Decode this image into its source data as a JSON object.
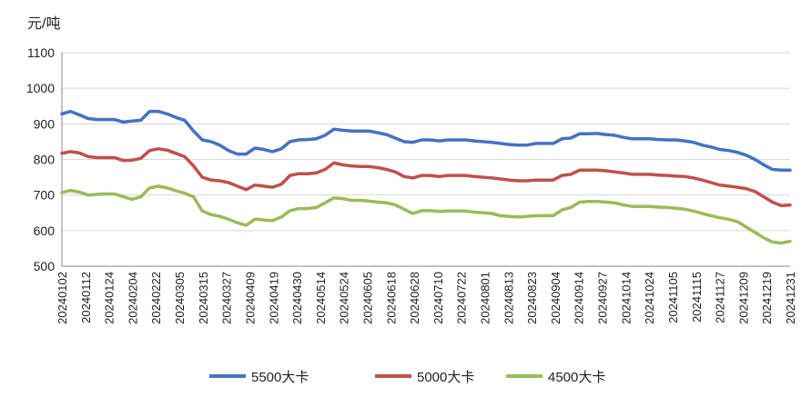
{
  "chart_data": {
    "type": "line",
    "unit_label": "元/吨",
    "ylim": [
      500,
      1100
    ],
    "y_ticks": [
      500,
      600,
      700,
      800,
      900,
      1000,
      1100
    ],
    "grid": true,
    "legend_position": "bottom",
    "x_ticks": [
      "20240102",
      "20240112",
      "20240124",
      "20240204",
      "20240222",
      "20240305",
      "20240315",
      "20240327",
      "20240409",
      "20240419",
      "20240430",
      "20240514",
      "20240524",
      "20240605",
      "20240618",
      "20240628",
      "20240710",
      "20240722",
      "20240801",
      "20240813",
      "20240823",
      "20240904",
      "20240914",
      "20240927",
      "20241014",
      "20241024",
      "20241105",
      "20241115",
      "20241127",
      "20241209",
      "20241219",
      "20241231"
    ],
    "series": [
      {
        "name": "5500大卡",
        "color": "#4472C4",
        "values": [
          928,
          935,
          925,
          915,
          912,
          912,
          912,
          905,
          908,
          910,
          935,
          935,
          928,
          918,
          910,
          880,
          855,
          850,
          840,
          825,
          815,
          815,
          832,
          828,
          822,
          830,
          850,
          855,
          856,
          858,
          868,
          885,
          882,
          880,
          880,
          880,
          875,
          870,
          860,
          850,
          848,
          855,
          855,
          852,
          855,
          855,
          855,
          852,
          850,
          848,
          845,
          842,
          840,
          840,
          845,
          845,
          845,
          858,
          860,
          872,
          872,
          873,
          870,
          868,
          862,
          858,
          858,
          858,
          856,
          855,
          855,
          852,
          848,
          840,
          835,
          828,
          825,
          820,
          812,
          800,
          785,
          772,
          770,
          770
        ]
      },
      {
        "name": "5000大卡",
        "color": "#C0504D",
        "values": [
          817,
          822,
          818,
          808,
          805,
          805,
          805,
          797,
          798,
          803,
          825,
          830,
          826,
          817,
          808,
          782,
          750,
          742,
          740,
          735,
          725,
          715,
          728,
          725,
          722,
          730,
          755,
          760,
          760,
          762,
          772,
          790,
          785,
          782,
          780,
          780,
          777,
          772,
          765,
          752,
          748,
          755,
          755,
          752,
          755,
          755,
          755,
          752,
          750,
          748,
          745,
          742,
          740,
          740,
          742,
          742,
          742,
          755,
          758,
          770,
          770,
          770,
          768,
          765,
          762,
          758,
          758,
          758,
          756,
          755,
          753,
          752,
          748,
          742,
          735,
          728,
          725,
          722,
          718,
          710,
          695,
          680,
          670,
          672
        ]
      },
      {
        "name": "4500大卡",
        "color": "#9BBB59",
        "values": [
          707,
          713,
          708,
          700,
          702,
          703,
          703,
          695,
          688,
          695,
          720,
          725,
          720,
          712,
          705,
          695,
          655,
          645,
          640,
          632,
          622,
          615,
          632,
          630,
          628,
          638,
          656,
          662,
          662,
          665,
          678,
          692,
          690,
          685,
          685,
          683,
          680,
          678,
          672,
          660,
          648,
          656,
          656,
          654,
          655,
          655,
          655,
          652,
          650,
          648,
          642,
          640,
          638,
          640,
          642,
          642,
          642,
          658,
          665,
          680,
          682,
          682,
          680,
          678,
          672,
          668,
          668,
          668,
          666,
          665,
          663,
          660,
          655,
          648,
          642,
          636,
          632,
          625,
          610,
          595,
          580,
          568,
          565,
          570
        ]
      }
    ]
  }
}
